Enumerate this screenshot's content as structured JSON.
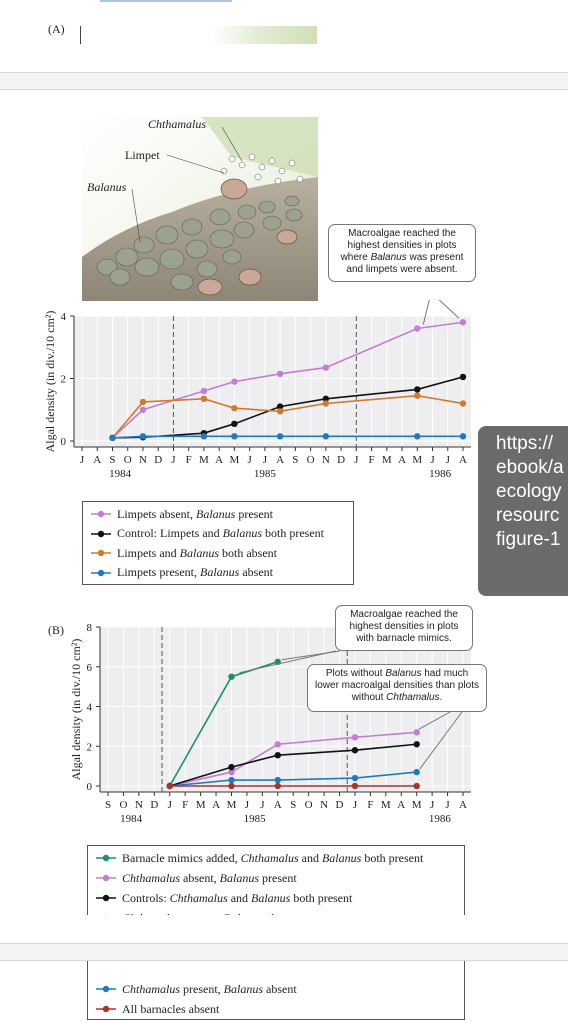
{
  "panelA_label": "(A)",
  "panelB_label": "(B)",
  "illustration_labels": {
    "chthamalus": "Chthamalus",
    "limpet": "Limpet",
    "balanus": "Balanus"
  },
  "tooltip_lines": [
    "https://",
    "ebook/a",
    "ecology",
    "resourc",
    "figure-1"
  ],
  "colors": {
    "purple": "#c37dd3",
    "black": "#111111",
    "orange": "#d07a2c",
    "blue": "#1f7ac2",
    "green": "#17936a",
    "red": "#a8342c",
    "plot_bg": "#eeeef1"
  },
  "chart_data": [
    {
      "type": "line",
      "panel": "A",
      "ylabel": "Algal density (in div./10 cm²)",
      "ylim": [
        0,
        4
      ],
      "yticks": [
        0,
        2,
        4
      ],
      "month_ticks": [
        "J",
        "A",
        "S",
        "O",
        "N",
        "D",
        "J",
        "F",
        "M",
        "A",
        "M",
        "J",
        "J",
        "A",
        "S",
        "O",
        "N",
        "D",
        "J",
        "F",
        "M",
        "A",
        "M",
        "J",
        "J",
        "A"
      ],
      "year_labels": [
        {
          "label": "1984",
          "month_index": 2.5
        },
        {
          "label": "1985",
          "month_index": 12
        },
        {
          "label": "1986",
          "month_index": 23.5
        }
      ],
      "dashed_lines_at_month": [
        6,
        18
      ],
      "callout": "Macroalgae reached the highest densities in plots where Balanus was present and limpets were absent.",
      "legend": [
        "Limpets absent, Balanus present",
        "Control: Limpets and Balanus both present",
        "Limpets and Balanus both absent",
        "Limpets present, Balanus absent"
      ],
      "series": [
        {
          "name": "Limpets absent, Balanus present",
          "color": "purple",
          "x": [
            2,
            4,
            8,
            10,
            13,
            16,
            22,
            25
          ],
          "values": [
            0.1,
            1.0,
            1.6,
            1.9,
            2.15,
            2.35,
            3.6,
            3.8
          ]
        },
        {
          "name": "Control: Limpets and Balanus both present",
          "color": "black",
          "x": [
            2,
            4,
            8,
            10,
            13,
            16,
            22,
            25
          ],
          "values": [
            0.1,
            0.12,
            0.25,
            0.55,
            1.1,
            1.35,
            1.65,
            2.05
          ]
        },
        {
          "name": "Limpets and Balanus both absent",
          "color": "orange",
          "x": [
            2,
            4,
            8,
            10,
            13,
            16,
            22,
            25
          ],
          "values": [
            0.1,
            1.25,
            1.35,
            1.05,
            0.95,
            1.2,
            1.45,
            1.2
          ]
        },
        {
          "name": "Limpets present, Balanus absent",
          "color": "blue",
          "x": [
            2,
            4,
            8,
            10,
            13,
            16,
            22,
            25
          ],
          "values": [
            0.1,
            0.15,
            0.15,
            0.15,
            0.15,
            0.15,
            0.15,
            0.15
          ]
        }
      ]
    },
    {
      "type": "line",
      "panel": "B",
      "ylabel": "Algal density (in div./10 cm²)",
      "ylim": [
        0,
        8
      ],
      "yticks": [
        0,
        2,
        4,
        6,
        8
      ],
      "month_ticks": [
        "S",
        "O",
        "N",
        "D",
        "J",
        "F",
        "M",
        "A",
        "M",
        "J",
        "J",
        "A",
        "S",
        "O",
        "N",
        "D",
        "J",
        "F",
        "M",
        "A",
        "M",
        "J",
        "J",
        "A"
      ],
      "year_labels": [
        {
          "label": "1984",
          "month_index": 1.5
        },
        {
          "label": "1985",
          "month_index": 9.5
        },
        {
          "label": "1986",
          "month_index": 21.5
        }
      ],
      "dashed_lines_at_month": [
        3.5,
        15.5
      ],
      "callouts": [
        "Macroalgae reached the highest densities in plots with barnacle mimics.",
        "Plots without Balanus had much lower macroalgal densities than plots without Chthamalus."
      ],
      "legend": [
        "Barnacle mimics added, Chthamalus and Balanus both present",
        "Chthamalus absent, Balanus present",
        "Controls: Chthamalus and Balanus both present",
        "Chthamalus present, Balanus absent",
        "All barnacles absent"
      ],
      "series": [
        {
          "name": "Barnacle mimics added, Chthamalus and Balanus both present",
          "color": "green",
          "x": [
            4,
            8,
            11
          ],
          "values": [
            0,
            5.5,
            6.25
          ]
        },
        {
          "name": "Chthamalus absent, Balanus present",
          "color": "purple",
          "x": [
            4,
            8,
            11,
            16,
            20
          ],
          "values": [
            0,
            0.7,
            2.1,
            2.45,
            2.7
          ]
        },
        {
          "name": "Controls: Chthamalus and Balanus both present",
          "color": "black",
          "x": [
            4,
            8,
            11,
            16,
            20
          ],
          "values": [
            0,
            0.95,
            1.55,
            1.8,
            2.1
          ]
        },
        {
          "name": "Chthamalus present, Balanus absent",
          "color": "blue",
          "x": [
            4,
            8,
            11,
            16,
            20
          ],
          "values": [
            0,
            0.3,
            0.3,
            0.4,
            0.7
          ]
        },
        {
          "name": "All barnacles absent",
          "color": "red",
          "x": [
            4,
            8,
            11,
            16,
            20
          ],
          "values": [
            0,
            0,
            0,
            0,
            0
          ]
        }
      ]
    }
  ]
}
